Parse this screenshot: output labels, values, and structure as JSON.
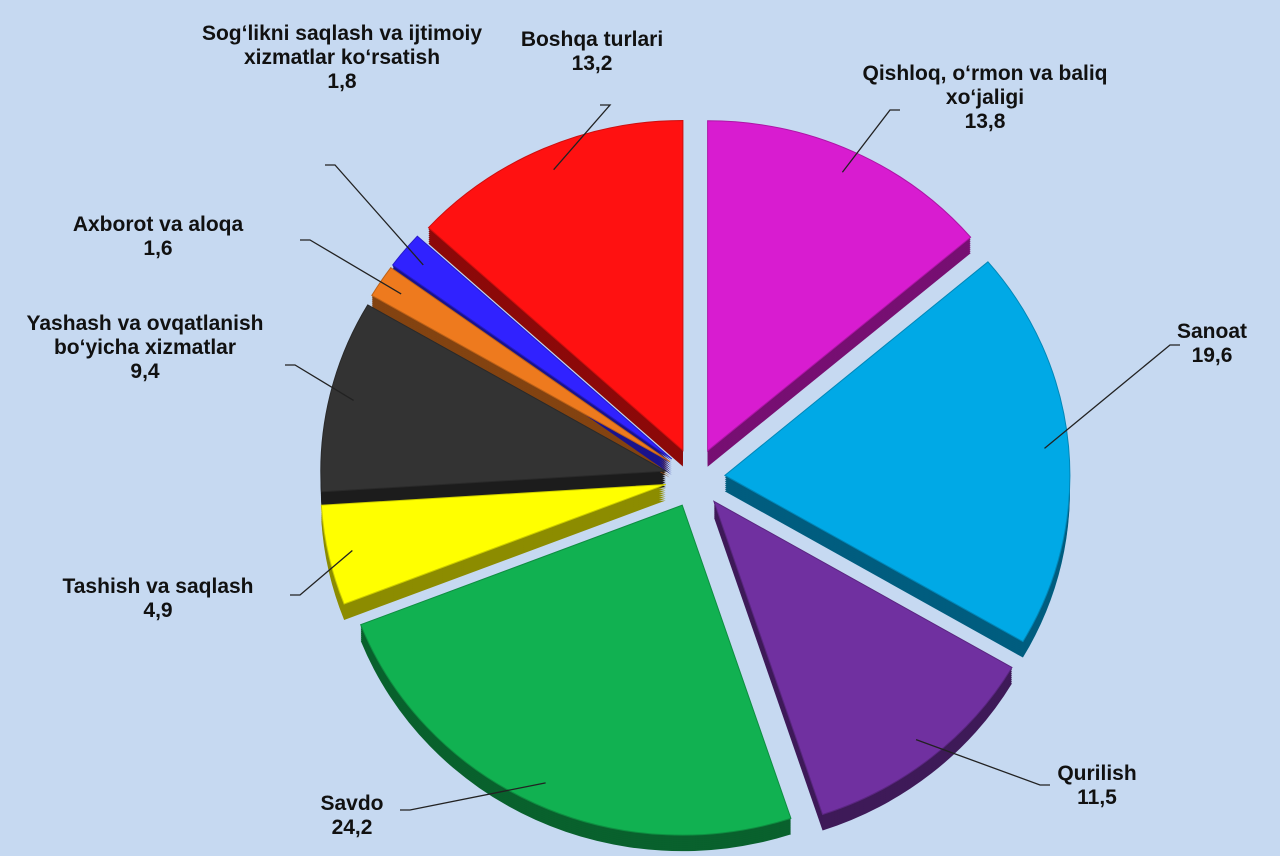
{
  "chart_data": {
    "type": "pie",
    "categories": [
      "Qishloq, o‘rmon va baliq xo‘jaligi",
      "Sanoat",
      "Qurilish",
      "Savdo",
      "Tashish va saqlash",
      "Yashash va ovqatlanish bo‘yicha xizmatlar",
      "Axborot va aloqa",
      "Sog‘likni saqlash va ijtimoiy xizmatlar ko‘rsatish",
      "Boshqa turlari"
    ],
    "values": [
      13.8,
      19.6,
      11.5,
      24.2,
      4.9,
      9.4,
      1.6,
      1.8,
      13.2
    ],
    "value_labels": [
      "13,8",
      "19,6",
      "11,5",
      "24,2",
      "4,9",
      "9,4",
      "1,6",
      "1,8",
      "13,2"
    ],
    "colors": [
      "#d81cd0",
      "#00a9e6",
      "#7030a0",
      "#11b151",
      "#ffff00",
      "#333333",
      "#ee7a1e",
      "#3022ff",
      "#ff1111"
    ]
  }
}
